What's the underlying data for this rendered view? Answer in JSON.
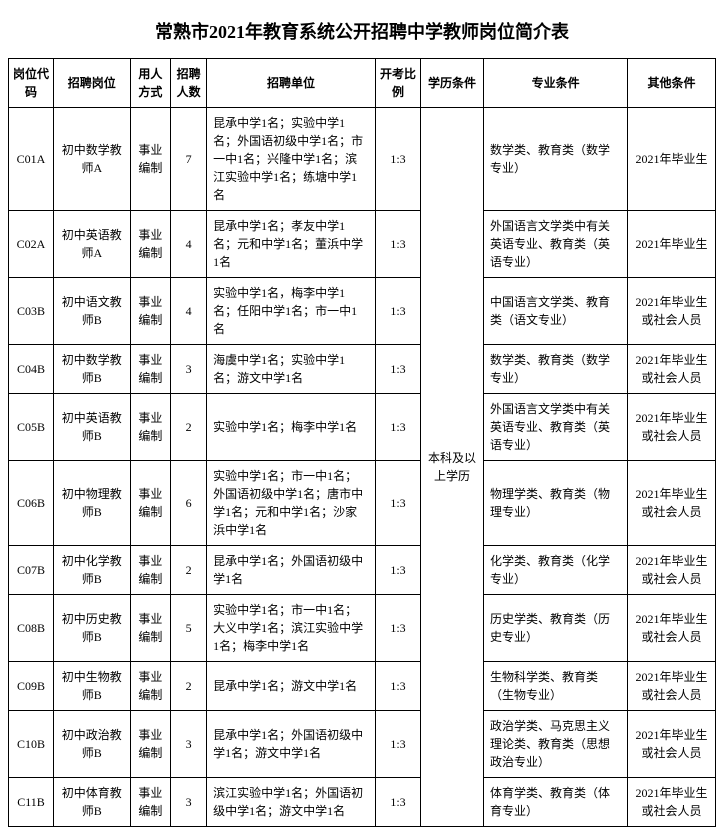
{
  "title": "常熟市2021年教育系统公开招聘中学教师岗位简介表",
  "headers": {
    "code": "岗位代码",
    "position": "招聘岗位",
    "method": "用人方式",
    "count": "招聘人数",
    "unit": "招聘单位",
    "ratio": "开考比例",
    "edu": "学历条件",
    "major": "专业条件",
    "other": "其他条件"
  },
  "edu_merged": "本科及以上学历",
  "rows": [
    {
      "code": "C01A",
      "position": "初中数学教师A",
      "method": "事业编制",
      "count": "7",
      "unit": "昆承中学1名；实验中学1名；外国语初级中学1名；市一中1名；兴隆中学1名；滨江实验中学1名；练塘中学1名",
      "ratio": "1:3",
      "major": "数学类、教育类（数学专业）",
      "other": "2021年毕业生"
    },
    {
      "code": "C02A",
      "position": "初中英语教师A",
      "method": "事业编制",
      "count": "4",
      "unit": "昆承中学1名；孝友中学1名；元和中学1名；董浜中学1名",
      "ratio": "1:3",
      "major": "外国语言文学类中有关英语专业、教育类（英语专业）",
      "other": "2021年毕业生"
    },
    {
      "code": "C03B",
      "position": "初中语文教师B",
      "method": "事业编制",
      "count": "4",
      "unit": "实验中学1名，梅李中学1名；任阳中学1名；市一中1名",
      "ratio": "1:3",
      "major": "中国语言文学类、教育类（语文专业）",
      "other": "2021年毕业生或社会人员"
    },
    {
      "code": "C04B",
      "position": "初中数学教师B",
      "method": "事业编制",
      "count": "3",
      "unit": "海虞中学1名；实验中学1名；游文中学1名",
      "ratio": "1:3",
      "major": "数学类、教育类（数学专业）",
      "other": "2021年毕业生或社会人员"
    },
    {
      "code": "C05B",
      "position": "初中英语教师B",
      "method": "事业编制",
      "count": "2",
      "unit": "实验中学1名；梅李中学1名",
      "ratio": "1:3",
      "major": "外国语言文学类中有关英语专业、教育类（英语专业）",
      "other": "2021年毕业生或社会人员"
    },
    {
      "code": "C06B",
      "position": "初中物理教师B",
      "method": "事业编制",
      "count": "6",
      "unit": "实验中学1名；市一中1名；外国语初级中学1名；唐市中学1名；元和中学1名；沙家浜中学1名",
      "ratio": "1:3",
      "major": "物理学类、教育类（物理专业）",
      "other": "2021年毕业生或社会人员"
    },
    {
      "code": "C07B",
      "position": "初中化学教师B",
      "method": "事业编制",
      "count": "2",
      "unit": "昆承中学1名；外国语初级中学1名",
      "ratio": "1:3",
      "major": "化学类、教育类（化学专业）",
      "other": "2021年毕业生或社会人员"
    },
    {
      "code": "C08B",
      "position": "初中历史教师B",
      "method": "事业编制",
      "count": "5",
      "unit": "实验中学1名；市一中1名；大义中学1名；滨江实验中学1名；梅李中学1名",
      "ratio": "1:3",
      "major": "历史学类、教育类（历史专业）",
      "other": "2021年毕业生或社会人员"
    },
    {
      "code": "C09B",
      "position": "初中生物教师B",
      "method": "事业编制",
      "count": "2",
      "unit": "昆承中学1名；游文中学1名",
      "ratio": "1:3",
      "major": "生物科学类、教育类（生物专业）",
      "other": "2021年毕业生或社会人员"
    },
    {
      "code": "C10B",
      "position": "初中政治教师B",
      "method": "事业编制",
      "count": "3",
      "unit": "昆承中学1名；外国语初级中学1名；游文中学1名",
      "ratio": "1:3",
      "major": "政治学类、马克思主义理论类、教育类（思想政治专业）",
      "other": "2021年毕业生或社会人员"
    },
    {
      "code": "C11B",
      "position": "初中体育教师B",
      "method": "事业编制",
      "count": "3",
      "unit": "滨江实验中学1名；外国语初级中学1名；游文中学1名",
      "ratio": "1:3",
      "major": "体育学类、教育类（体育专业）",
      "other": "2021年毕业生或社会人员"
    }
  ]
}
